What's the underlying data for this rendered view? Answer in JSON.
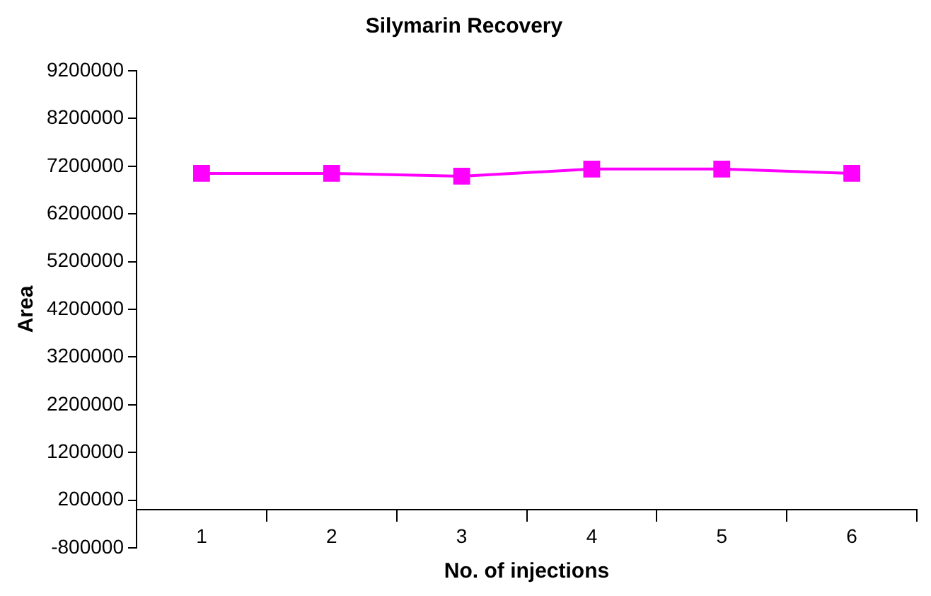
{
  "chart_data": {
    "type": "line",
    "title": "Silymarin Recovery",
    "xlabel": "No. of injections",
    "ylabel": "Area",
    "categories": [
      "1",
      "2",
      "3",
      "4",
      "5",
      "6"
    ],
    "series": [
      {
        "color": "#ff00ff",
        "values": [
          7050000,
          7050000,
          6990000,
          7140000,
          7140000,
          7050000
        ]
      }
    ],
    "ylim": [
      -800000,
      9200000
    ],
    "yticks": [
      -800000,
      200000,
      1200000,
      2200000,
      3200000,
      4200000,
      5200000,
      6200000,
      7200000,
      8200000,
      9200000
    ],
    "grid": false,
    "legend": false,
    "marker": "square",
    "line_style": "solid"
  }
}
